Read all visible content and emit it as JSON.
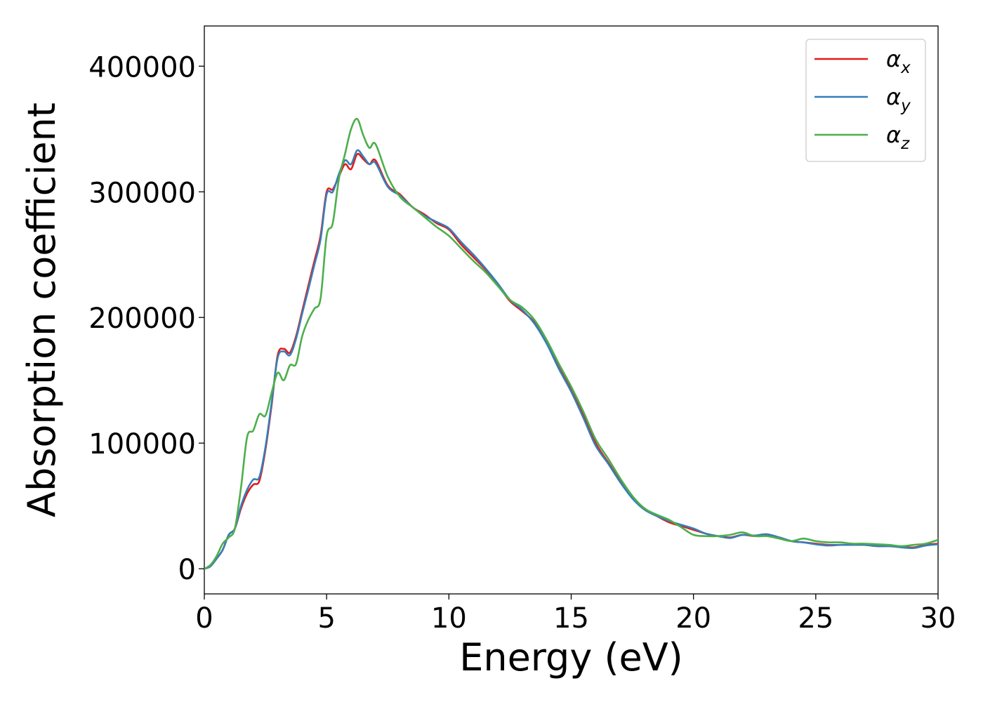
{
  "chart_data": {
    "type": "line",
    "title": "",
    "xlabel": "Energy (eV)",
    "ylabel": "Absorption coefficient",
    "xlim": [
      0,
      30
    ],
    "ylim": [
      -20000,
      432000
    ],
    "x_ticks": [
      0,
      5,
      10,
      15,
      20,
      25,
      30
    ],
    "y_ticks": [
      0,
      100000,
      200000,
      300000,
      400000
    ],
    "grid": false,
    "legend_position": "top-right",
    "series": [
      {
        "name": "αx",
        "symbol": "α",
        "subscript": "x",
        "color": "#e41a1c",
        "x": [
          0,
          0.25,
          0.5,
          0.75,
          1.0,
          1.25,
          1.5,
          1.75,
          2.0,
          2.25,
          2.5,
          2.75,
          3.0,
          3.25,
          3.5,
          3.75,
          4.0,
          4.25,
          4.5,
          4.75,
          5.0,
          5.25,
          5.5,
          5.75,
          6.0,
          6.25,
          6.5,
          6.75,
          7.0,
          7.5,
          8.0,
          8.5,
          9.0,
          9.5,
          10.0,
          10.5,
          11.0,
          11.5,
          12.0,
          12.5,
          13.0,
          13.5,
          14.0,
          14.5,
          15.0,
          15.5,
          16.0,
          16.5,
          17.0,
          17.5,
          18.0,
          18.5,
          19.0,
          19.5,
          20.0,
          20.5,
          21.0,
          21.5,
          22.0,
          22.5,
          23.0,
          23.5,
          24.0,
          24.5,
          25.0,
          25.5,
          26.0,
          26.5,
          27.0,
          27.5,
          28.0,
          28.5,
          29.0,
          29.5,
          30.0
        ],
        "y": [
          0,
          2000,
          8000,
          15000,
          27000,
          32000,
          48000,
          60000,
          67000,
          70000,
          95000,
          130000,
          170000,
          175000,
          172000,
          185000,
          205000,
          225000,
          245000,
          265000,
          300000,
          302000,
          312000,
          322000,
          318000,
          330000,
          326000,
          322000,
          325000,
          305000,
          298000,
          288000,
          282000,
          275000,
          270000,
          258000,
          248000,
          238000,
          226000,
          213000,
          205000,
          196000,
          180000,
          160000,
          143000,
          122000,
          100000,
          85000,
          70000,
          57000,
          48000,
          42000,
          37000,
          34000,
          31000,
          28000,
          26000,
          25000,
          27000,
          26000,
          27000,
          25000,
          22000,
          21000,
          20000,
          19000,
          19000,
          19000,
          19000,
          18000,
          18000,
          17500,
          17000,
          19000,
          20000
        ]
      },
      {
        "name": "αy",
        "symbol": "α",
        "subscript": "y",
        "color": "#377eb8",
        "x": [
          0,
          0.25,
          0.5,
          0.75,
          1.0,
          1.25,
          1.5,
          1.75,
          2.0,
          2.25,
          2.5,
          2.75,
          3.0,
          3.25,
          3.5,
          3.75,
          4.0,
          4.25,
          4.5,
          4.75,
          5.0,
          5.25,
          5.5,
          5.75,
          6.0,
          6.25,
          6.5,
          6.75,
          7.0,
          7.5,
          8.0,
          8.5,
          9.0,
          9.5,
          10.0,
          10.5,
          11.0,
          11.5,
          12.0,
          12.5,
          13.0,
          13.5,
          14.0,
          14.5,
          15.0,
          15.5,
          16.0,
          16.5,
          17.0,
          17.5,
          18.0,
          18.5,
          19.0,
          19.5,
          20.0,
          20.5,
          21.0,
          21.5,
          22.0,
          22.5,
          23.0,
          23.5,
          24.0,
          24.5,
          25.0,
          25.5,
          26.0,
          26.5,
          27.0,
          27.5,
          28.0,
          28.5,
          29.0,
          29.5,
          30.0
        ],
        "y": [
          0,
          2000,
          8000,
          15000,
          27000,
          32000,
          50000,
          63000,
          71000,
          73000,
          97000,
          132000,
          168000,
          173000,
          170000,
          183000,
          203000,
          222000,
          242000,
          262000,
          298000,
          300000,
          314000,
          325000,
          322000,
          333000,
          328000,
          322000,
          323000,
          304000,
          297000,
          288000,
          281000,
          276000,
          271000,
          260000,
          250000,
          239000,
          227000,
          214000,
          206000,
          195000,
          179000,
          159000,
          141000,
          120000,
          98000,
          84000,
          69000,
          56000,
          47000,
          42000,
          38000,
          35000,
          32000,
          28000,
          26000,
          24500,
          27000,
          26500,
          27500,
          25000,
          22000,
          21000,
          19500,
          18500,
          19000,
          19000,
          19000,
          18000,
          18000,
          17000,
          16500,
          18500,
          19500
        ]
      },
      {
        "name": "αz",
        "symbol": "α",
        "subscript": "z",
        "color": "#4daf4a",
        "x": [
          0,
          0.25,
          0.5,
          0.75,
          1.0,
          1.25,
          1.5,
          1.75,
          2.0,
          2.25,
          2.5,
          2.75,
          3.0,
          3.25,
          3.5,
          3.75,
          4.0,
          4.25,
          4.5,
          4.75,
          5.0,
          5.25,
          5.5,
          5.75,
          6.0,
          6.25,
          6.5,
          6.75,
          7.0,
          7.5,
          8.0,
          8.5,
          9.0,
          9.5,
          10.0,
          10.5,
          11.0,
          11.5,
          12.0,
          12.5,
          13.0,
          13.5,
          14.0,
          14.5,
          15.0,
          15.5,
          16.0,
          16.5,
          17.0,
          17.5,
          18.0,
          18.5,
          19.0,
          19.5,
          20.0,
          20.5,
          21.0,
          21.5,
          22.0,
          22.5,
          23.0,
          23.5,
          24.0,
          24.5,
          25.0,
          25.5,
          26.0,
          26.5,
          27.0,
          27.5,
          28.0,
          28.5,
          29.0,
          29.5,
          30.0
        ],
        "y": [
          0,
          3000,
          10000,
          20000,
          25000,
          32000,
          65000,
          105000,
          110000,
          123000,
          122000,
          140000,
          156000,
          150000,
          162000,
          163000,
          185000,
          198000,
          207000,
          215000,
          265000,
          275000,
          310000,
          330000,
          350000,
          358000,
          345000,
          335000,
          338000,
          312000,
          296000,
          288000,
          280000,
          272000,
          265000,
          255000,
          245000,
          236000,
          225000,
          214000,
          208000,
          198000,
          182000,
          163000,
          145000,
          125000,
          103000,
          88000,
          72000,
          58000,
          48000,
          43000,
          39000,
          33000,
          27000,
          26000,
          26000,
          27000,
          29000,
          26000,
          26000,
          24000,
          22000,
          24000,
          22000,
          21000,
          21000,
          20000,
          20000,
          19500,
          19000,
          18000,
          19000,
          20000,
          23000
        ]
      }
    ]
  }
}
